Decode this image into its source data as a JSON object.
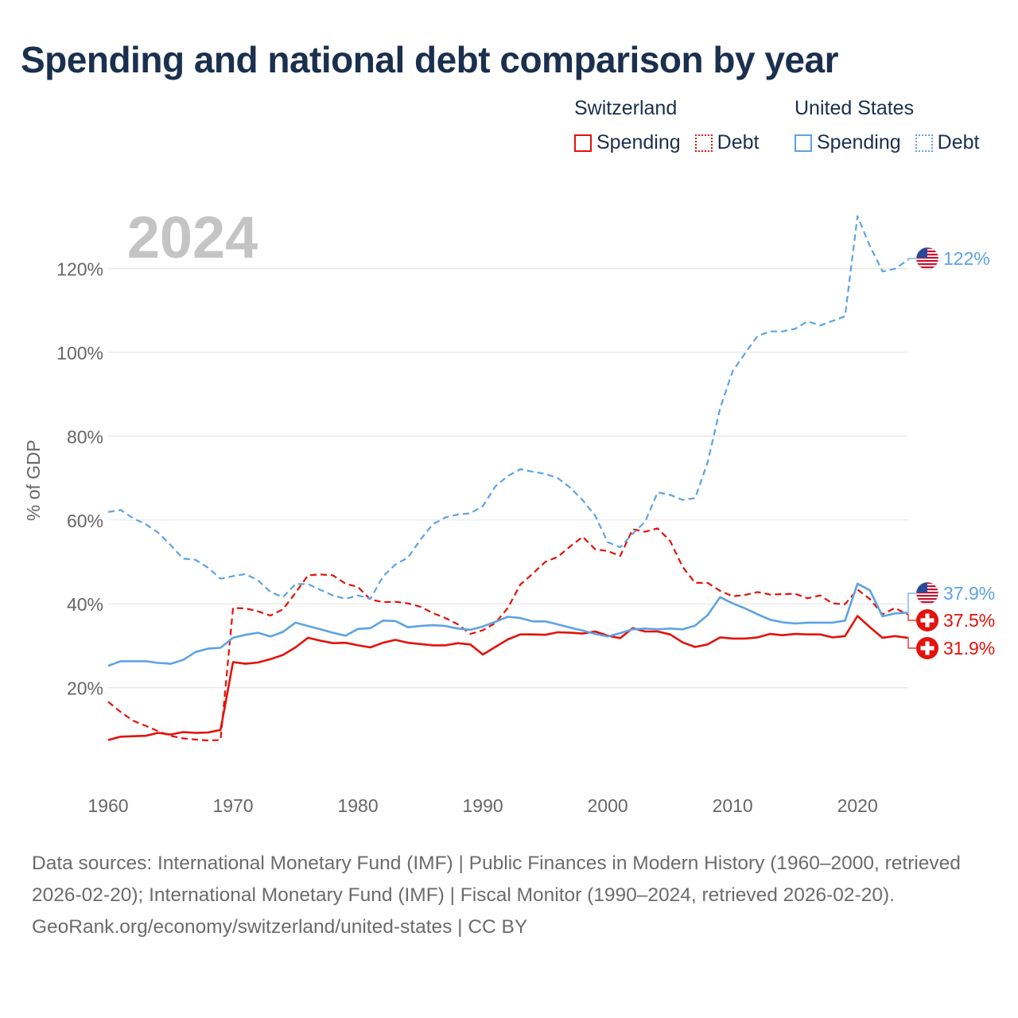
{
  "title": "Spending and national debt comparison by year",
  "legend": {
    "groups": [
      {
        "name": "Switzerland",
        "color": "#e3120b",
        "items": [
          {
            "label": "Spending",
            "style": "solid"
          },
          {
            "label": "Debt",
            "style": "dotted"
          }
        ]
      },
      {
        "name": "United States",
        "color": "#5da3e3",
        "items": [
          {
            "label": "Spending",
            "style": "solid"
          },
          {
            "label": "Debt",
            "style": "dotted"
          }
        ]
      }
    ]
  },
  "footer": {
    "sources": "Data sources: International Monetary Fund (IMF) | Public Finances in Modern History (1960–2000, retrieved 2026-02-20); International Monetary Fund (IMF) | Fiscal Monitor (1990–2024, retrieved 2026-02-20).",
    "credit": "GeoRank.org/economy/switzerland/united-states | CC BY"
  },
  "chart_data": {
    "type": "line",
    "year_label": "2024",
    "ylabel": "% of GDP",
    "xlabel": "",
    "xlim": [
      1960,
      2024
    ],
    "ylim": [
      0,
      130
    ],
    "x_ticks": [
      1960,
      1970,
      1980,
      1990,
      2000,
      2010,
      2020
    ],
    "y_ticks": [
      20,
      40,
      60,
      80,
      100,
      120
    ],
    "y_tick_labels": [
      "20%",
      "40%",
      "60%",
      "80%",
      "100%",
      "120%"
    ],
    "grid": true,
    "x_start": 1960,
    "series": [
      {
        "id": "ch-spending",
        "name": "Switzerland Spending",
        "country": "Switzerland",
        "color": "#e3120b",
        "dash": "solid",
        "end_label": "31.9%",
        "values": [
          7.5,
          8.3,
          8.4,
          8.5,
          9.2,
          8.8,
          9.4,
          9.2,
          9.3,
          9.9,
          26.1,
          25.7,
          26.0,
          26.8,
          27.8,
          29.6,
          31.9,
          31.2,
          30.6,
          30.7,
          30.1,
          29.6,
          30.7,
          31.4,
          30.7,
          30.4,
          30.1,
          30.1,
          30.6,
          30.3,
          27.9,
          29.7,
          31.5,
          32.7,
          32.7,
          32.6,
          33.2,
          33.1,
          32.9,
          33.4,
          32.4,
          31.8,
          34.2,
          33.4,
          33.4,
          32.7,
          30.8,
          29.7,
          30.3,
          32.0,
          31.7,
          31.7,
          32.0,
          32.8,
          32.5,
          32.8,
          32.7,
          32.7,
          32.0,
          32.3,
          37.1,
          34.4,
          31.9,
          32.3,
          31.9
        ]
      },
      {
        "id": "ch-debt",
        "name": "Switzerland Debt",
        "country": "Switzerland",
        "color": "#e3120b",
        "dash": "dashed",
        "end_label": "37.5%",
        "values": [
          16.6,
          14.2,
          12.1,
          10.9,
          9.6,
          8.5,
          7.9,
          7.6,
          7.4,
          7.5,
          39.0,
          38.9,
          38.2,
          37.2,
          38.7,
          42.6,
          46.8,
          47.0,
          46.8,
          44.8,
          44.0,
          41.0,
          40.4,
          40.5,
          40.1,
          39.3,
          37.8,
          36.6,
          35.1,
          32.8,
          33.7,
          35.4,
          39.0,
          44.6,
          47.2,
          50.0,
          51.2,
          53.7,
          56.0,
          53.0,
          52.6,
          51.4,
          57.8,
          57.2,
          58.0,
          55.0,
          48.8,
          45.0,
          45.0,
          43.1,
          41.8,
          42.1,
          42.8,
          42.2,
          42.3,
          42.4,
          41.3,
          42.0,
          40.1,
          39.9,
          43.4,
          41.1,
          37.5,
          39.0,
          37.5
        ]
      },
      {
        "id": "us-spending",
        "name": "United States Spending",
        "country": "United States",
        "color": "#5da3e3",
        "dash": "solid",
        "end_label": "37.9%",
        "values": [
          25.2,
          26.3,
          26.3,
          26.3,
          25.9,
          25.7,
          26.6,
          28.5,
          29.3,
          29.5,
          31.9,
          32.6,
          33.1,
          32.2,
          33.3,
          35.5,
          34.7,
          33.9,
          33.1,
          32.4,
          34.0,
          34.2,
          36.0,
          35.9,
          34.4,
          34.7,
          34.9,
          34.7,
          34.1,
          33.8,
          34.6,
          35.7,
          36.9,
          36.6,
          35.8,
          35.8,
          35.1,
          34.3,
          33.6,
          32.8,
          32.2,
          33.0,
          33.9,
          34.1,
          33.9,
          34.1,
          33.9,
          34.8,
          37.3,
          41.6,
          40.1,
          38.9,
          37.5,
          36.2,
          35.6,
          35.3,
          35.5,
          35.5,
          35.5,
          36.0,
          44.8,
          43.2,
          37.0,
          37.7,
          37.9
        ]
      },
      {
        "id": "us-debt",
        "name": "United States Debt",
        "country": "United States",
        "color": "#5da3e3",
        "dash": "dashed",
        "end_label": "122%",
        "values": [
          61.9,
          62.4,
          60.4,
          59.0,
          57.0,
          54.0,
          50.8,
          50.5,
          48.6,
          46.0,
          46.6,
          47.1,
          45.6,
          42.8,
          41.6,
          44.7,
          44.7,
          43.3,
          42.0,
          41.2,
          42.0,
          41.2,
          46.5,
          49.4,
          51.0,
          55.3,
          59.0,
          60.6,
          61.3,
          61.6,
          63.3,
          68.0,
          70.5,
          72.1,
          71.5,
          71.0,
          70.0,
          67.7,
          64.7,
          61.0,
          54.7,
          53.5,
          56.7,
          59.6,
          66.6,
          66.0,
          64.8,
          65.2,
          73.8,
          86.7,
          95.5,
          99.8,
          103.9,
          105.0,
          105.0,
          105.6,
          107.4,
          106.4,
          107.5,
          108.6,
          132.5,
          125.3,
          119.3,
          119.9,
          122.0
        ]
      }
    ],
    "end_markers": [
      {
        "series": "us-debt",
        "label": "122%",
        "color": "#5da3e3",
        "flag": "us"
      },
      {
        "series": "us-spending",
        "label": "37.9%",
        "color": "#5da3e3",
        "flag": "us"
      },
      {
        "series": "ch-debt",
        "label": "37.5%",
        "color": "#e3120b",
        "flag": "ch"
      },
      {
        "series": "ch-spending",
        "label": "31.9%",
        "color": "#e3120b",
        "flag": "ch"
      }
    ]
  }
}
